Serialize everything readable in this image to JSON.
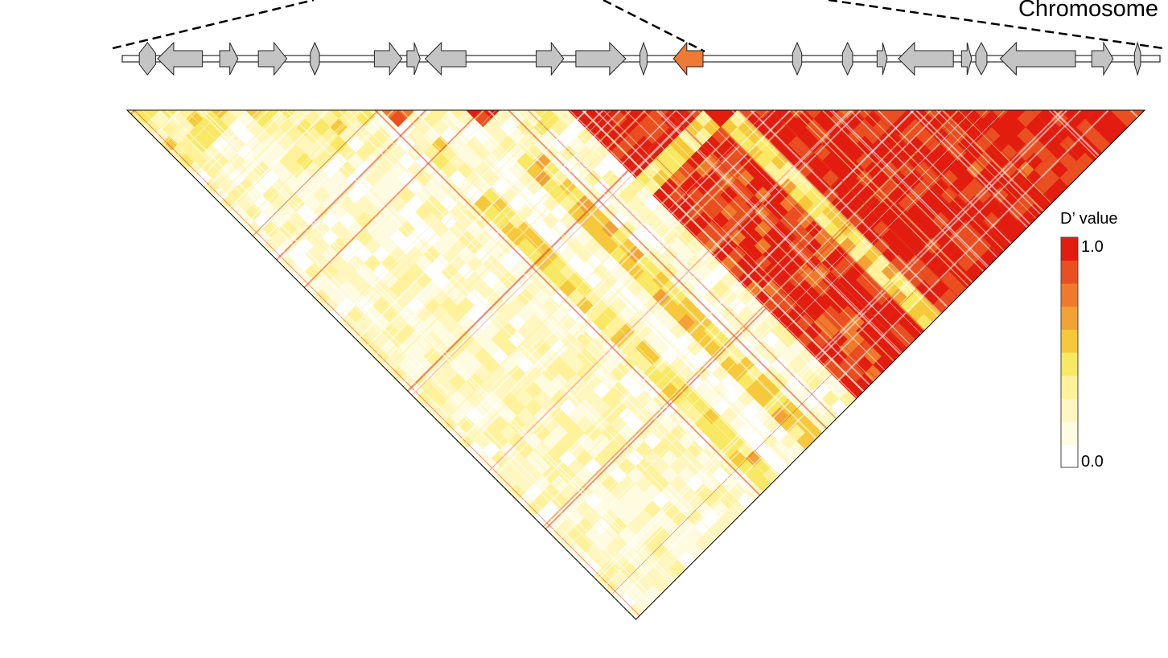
{
  "chart_data": {
    "type": "heatmap",
    "subtype": "linkage-disequilibrium-triangle",
    "title": "",
    "region_label": "Chromosome",
    "colorbar": {
      "label": "D’ value",
      "max_label": "1.0",
      "min_label": "0.0",
      "range": [
        0.0,
        1.0
      ],
      "steps": 10,
      "colors": [
        "#ffffff",
        "#fffbe0",
        "#fff7bf",
        "#fff29a",
        "#f8e863",
        "#f6c83b",
        "#f2a237",
        "#ef7a2c",
        "#ea4f22",
        "#e21d0f"
      ]
    },
    "genes": [
      {
        "start": 0.012,
        "end": 0.028,
        "strand": "marker",
        "highlight": false
      },
      {
        "start": 0.03,
        "end": 0.074,
        "strand": "-",
        "highlight": false
      },
      {
        "start": 0.091,
        "end": 0.109,
        "strand": "+",
        "highlight": false
      },
      {
        "start": 0.129,
        "end": 0.157,
        "strand": "+",
        "highlight": false
      },
      {
        "start": 0.18,
        "end": 0.189,
        "strand": "marker",
        "highlight": false
      },
      {
        "start": 0.243,
        "end": 0.27,
        "strand": "+",
        "highlight": false
      },
      {
        "start": 0.275,
        "end": 0.288,
        "strand": "+",
        "highlight": false
      },
      {
        "start": 0.293,
        "end": 0.333,
        "strand": "-",
        "highlight": false
      },
      {
        "start": 0.402,
        "end": 0.429,
        "strand": "+",
        "highlight": false
      },
      {
        "start": 0.441,
        "end": 0.49,
        "strand": "+",
        "highlight": false
      },
      {
        "start": 0.504,
        "end": 0.511,
        "strand": "marker",
        "highlight": false
      },
      {
        "start": 0.537,
        "end": 0.566,
        "strand": "-",
        "highlight": true
      },
      {
        "start": 0.654,
        "end": 0.663,
        "strand": "marker",
        "highlight": false
      },
      {
        "start": 0.703,
        "end": 0.713,
        "strand": "marker",
        "highlight": false
      },
      {
        "start": 0.737,
        "end": 0.747,
        "strand": "+",
        "highlight": false
      },
      {
        "start": 0.758,
        "end": 0.812,
        "strand": "-",
        "highlight": false
      },
      {
        "start": 0.82,
        "end": 0.83,
        "strand": "+",
        "highlight": false
      },
      {
        "start": 0.834,
        "end": 0.845,
        "strand": "marker",
        "highlight": false
      },
      {
        "start": 0.858,
        "end": 0.932,
        "strand": "-",
        "highlight": false
      },
      {
        "start": 0.948,
        "end": 0.969,
        "strand": "+",
        "highlight": false
      },
      {
        "start": 0.99,
        "end": 0.996,
        "strand": "marker",
        "highlight": false
      }
    ],
    "ld_blocks": [
      {
        "start": 0.0,
        "end": 0.12,
        "d_prime": 0.4
      },
      {
        "start": 0.12,
        "end": 0.25,
        "d_prime": 0.35
      },
      {
        "start": 0.25,
        "end": 0.285,
        "d_prime": 0.9
      },
      {
        "start": 0.285,
        "end": 0.34,
        "d_prime": 0.2
      },
      {
        "start": 0.34,
        "end": 0.36,
        "d_prime": 0.95
      },
      {
        "start": 0.36,
        "end": 0.43,
        "d_prime": 0.3
      },
      {
        "start": 0.43,
        "end": 0.56,
        "d_prime": 1.0
      },
      {
        "start": 0.56,
        "end": 0.6,
        "d_prime": 0.95
      },
      {
        "start": 0.6,
        "end": 1.0,
        "d_prime": 1.0
      }
    ]
  }
}
